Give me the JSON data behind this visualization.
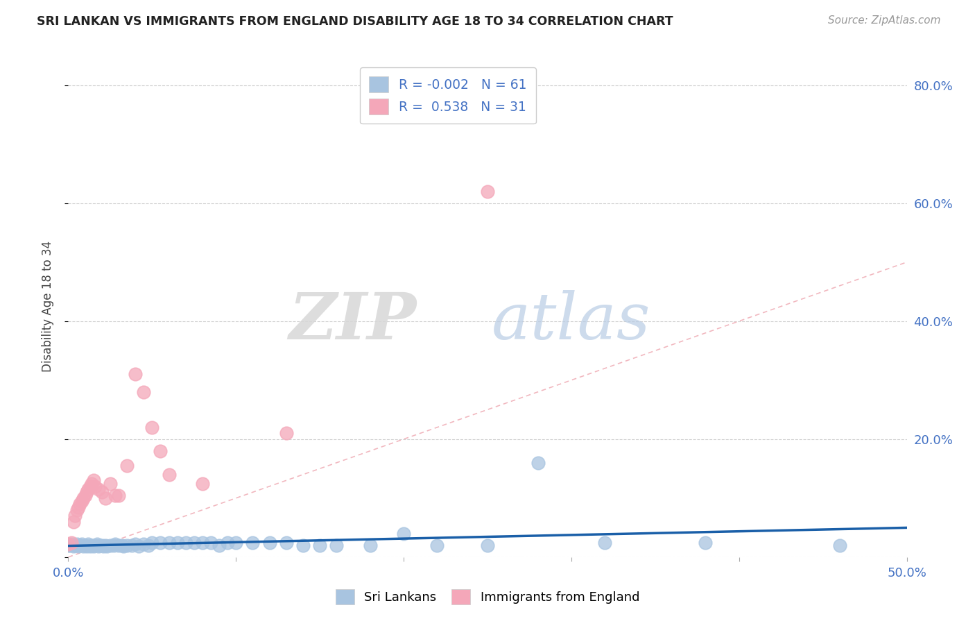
{
  "title": "SRI LANKAN VS IMMIGRANTS FROM ENGLAND DISABILITY AGE 18 TO 34 CORRELATION CHART",
  "source": "Source: ZipAtlas.com",
  "ylabel_label": "Disability Age 18 to 34",
  "xlim": [
    0.0,
    0.5
  ],
  "ylim": [
    0.0,
    0.85
  ],
  "x_ticks": [
    0.0,
    0.1,
    0.2,
    0.3,
    0.4,
    0.5
  ],
  "x_tick_labels": [
    "0.0%",
    "",
    "",
    "",
    "",
    "50.0%"
  ],
  "y_ticks": [
    0.0,
    0.2,
    0.4,
    0.6,
    0.8
  ],
  "y_tick_labels": [
    "",
    "20.0%",
    "40.0%",
    "60.0%",
    "80.0%"
  ],
  "sri_lankan_R": "-0.002",
  "sri_lankan_N": "61",
  "england_R": "0.538",
  "england_N": "31",
  "sri_lankan_color": "#a8c4e0",
  "england_color": "#f4a7b9",
  "sri_lankan_line_color": "#1a5fa8",
  "england_line_color": "#e06080",
  "diagonal_color": "#f0b0b8",
  "background_color": "#ffffff",
  "watermark_zip": "ZIP",
  "watermark_atlas": "atlas",
  "sl_x": [
    0.0,
    0.001,
    0.002,
    0.003,
    0.004,
    0.005,
    0.006,
    0.007,
    0.008,
    0.009,
    0.01,
    0.011,
    0.012,
    0.013,
    0.014,
    0.015,
    0.016,
    0.017,
    0.018,
    0.019,
    0.02,
    0.021,
    0.022,
    0.023,
    0.025,
    0.027,
    0.028,
    0.03,
    0.032,
    0.033,
    0.035,
    0.038,
    0.04,
    0.042,
    0.045,
    0.048,
    0.05,
    0.055,
    0.06,
    0.065,
    0.07,
    0.075,
    0.08,
    0.085,
    0.09,
    0.095,
    0.1,
    0.11,
    0.12,
    0.13,
    0.14,
    0.15,
    0.16,
    0.18,
    0.2,
    0.22,
    0.25,
    0.28,
    0.32,
    0.38,
    0.46
  ],
  "sl_y": [
    0.02,
    0.02,
    0.022,
    0.018,
    0.02,
    0.022,
    0.018,
    0.02,
    0.022,
    0.018,
    0.02,
    0.018,
    0.022,
    0.018,
    0.02,
    0.018,
    0.02,
    0.022,
    0.018,
    0.02,
    0.02,
    0.018,
    0.02,
    0.018,
    0.02,
    0.02,
    0.022,
    0.02,
    0.02,
    0.018,
    0.02,
    0.02,
    0.022,
    0.018,
    0.022,
    0.02,
    0.025,
    0.025,
    0.025,
    0.025,
    0.025,
    0.025,
    0.025,
    0.025,
    0.02,
    0.025,
    0.025,
    0.025,
    0.025,
    0.025,
    0.02,
    0.02,
    0.02,
    0.02,
    0.04,
    0.02,
    0.02,
    0.16,
    0.025,
    0.025,
    0.02
  ],
  "en_x": [
    0.0,
    0.002,
    0.003,
    0.004,
    0.005,
    0.006,
    0.007,
    0.008,
    0.009,
    0.01,
    0.011,
    0.012,
    0.013,
    0.014,
    0.015,
    0.016,
    0.018,
    0.02,
    0.022,
    0.025,
    0.028,
    0.03,
    0.035,
    0.04,
    0.045,
    0.05,
    0.055,
    0.06,
    0.08,
    0.13,
    0.25
  ],
  "en_y": [
    0.022,
    0.025,
    0.06,
    0.07,
    0.08,
    0.085,
    0.09,
    0.095,
    0.1,
    0.105,
    0.11,
    0.115,
    0.12,
    0.125,
    0.13,
    0.12,
    0.115,
    0.11,
    0.1,
    0.125,
    0.105,
    0.105,
    0.155,
    0.31,
    0.28,
    0.22,
    0.18,
    0.14,
    0.125,
    0.21,
    0.62
  ]
}
